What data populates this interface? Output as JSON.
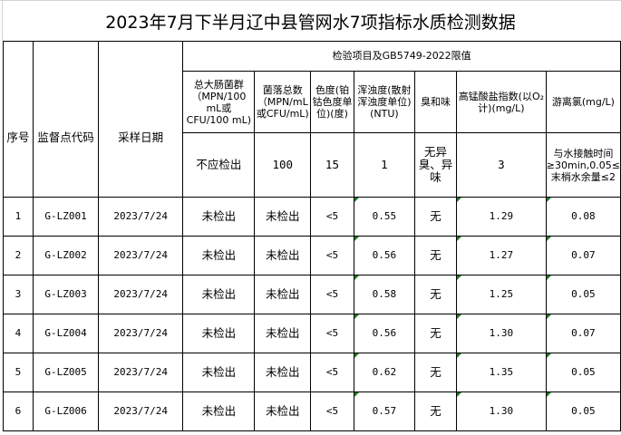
{
  "title": "2023年7月下半月辽中县管网水7项指标水质检测数据",
  "headers": {
    "index": "序号",
    "site_code": "监督点代码",
    "sample_date": "采样日期",
    "group": "检验项目及GB5749-2022限值",
    "items": [
      {
        "name": "总大肠菌群（MPN/100 mL或 CFU/100 mL)",
        "limit": "不应检出"
      },
      {
        "name": "菌落总数（MPN/mL或CFU/mL)",
        "limit": "100"
      },
      {
        "name": "色度(铂钴色度单位)(度)",
        "limit": "15"
      },
      {
        "name": "浑浊度(散射浑浊度单位)(NTU)",
        "limit": "1"
      },
      {
        "name": "臭和味",
        "limit": "无异臭、异味"
      },
      {
        "name": "高锰酸盐指数(以O₂计)(mg/L)",
        "limit": "3"
      },
      {
        "name": "游离氯(mg/L)",
        "limit": "与水接触时间≥30min,0.05≤末梢水余量≤2"
      }
    ]
  },
  "rows": [
    [
      "1",
      "G-LZ001",
      "2023/7/24",
      "未检出",
      "未检出",
      "<5",
      "0.55",
      "无",
      "1.29",
      "0.08"
    ],
    [
      "2",
      "G-LZ002",
      "2023/7/24",
      "未检出",
      "未检出",
      "<5",
      "0.56",
      "无",
      "1.27",
      "0.07"
    ],
    [
      "3",
      "G-LZ003",
      "2023/7/24",
      "未检出",
      "未检出",
      "<5",
      "0.58",
      "无",
      "1.25",
      "0.05"
    ],
    [
      "4",
      "G-LZ004",
      "2023/7/24",
      "未检出",
      "未检出",
      "<5",
      "0.56",
      "无",
      "1.30",
      "0.07"
    ],
    [
      "5",
      "G-LZ005",
      "2023/7/24",
      "未检出",
      "未检出",
      "<5",
      "0.62",
      "无",
      "1.35",
      "0.05"
    ],
    [
      "6",
      "G-LZ006",
      "2023/7/24",
      "未检出",
      "未检出",
      "<5",
      "0.57",
      "无",
      "1.30",
      "0.05"
    ]
  ]
}
